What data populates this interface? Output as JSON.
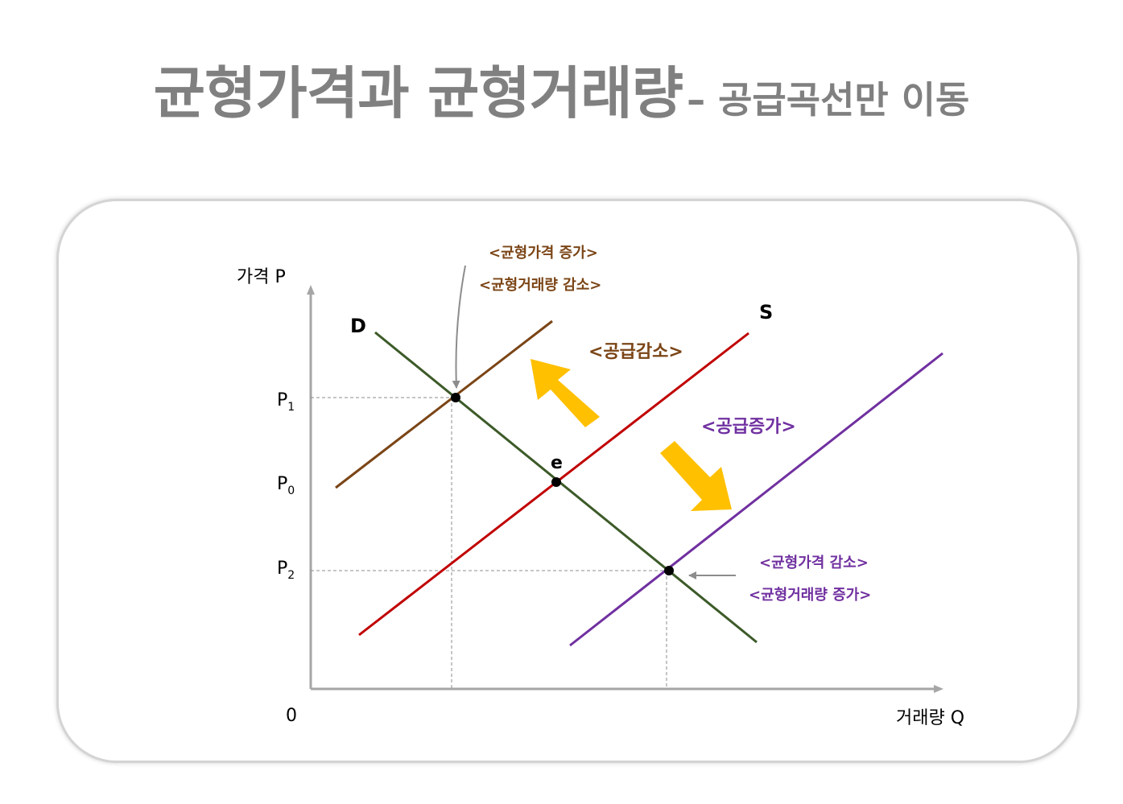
{
  "title": {
    "main": "균형가격과 균형거래량",
    "sub": "– 공급곡선만 이동"
  },
  "diagram": {
    "axes": {
      "y_label": "가격 P",
      "x_label": "거래량 Q",
      "origin": "0"
    },
    "price_ticks": [
      {
        "base": "P",
        "sub": "1"
      },
      {
        "base": "P",
        "sub": "0"
      },
      {
        "base": "P",
        "sub": "2"
      }
    ],
    "curves": {
      "demand": "D",
      "supply": "S"
    },
    "equilibrium_label": "e",
    "shift_labels": {
      "decrease": "<공급감소>",
      "increase": "<공급증가>"
    },
    "annotations": {
      "decrease_line1": "<균형가격 증가>",
      "decrease_line2": "<균형거래량 감소>",
      "increase_line1": "<균형가격 감소>",
      "increase_line2": "<균형거래량 증가>"
    },
    "colors": {
      "demand": "#3c5a28",
      "supply": "#c00000",
      "supply_decreased": "#7b4516",
      "supply_increased": "#7030a0",
      "shift_arrow": "#ffc000",
      "axis": "#a6a6a6",
      "guide": "#8c8c8c"
    }
  }
}
